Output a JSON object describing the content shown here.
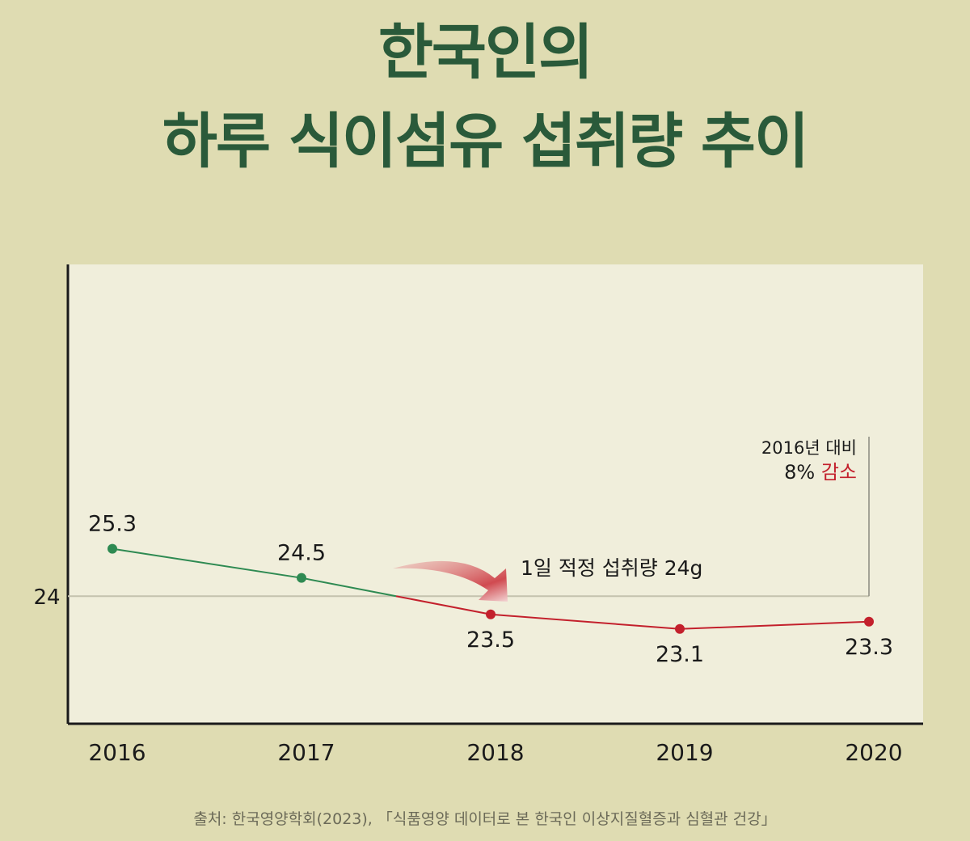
{
  "title_line1": "한국인의",
  "title_line2": "하루 식이섬유 섭취량 추이",
  "chart_data": {
    "type": "line",
    "title": "한국인의 하루 식이섬유 섭취량 추이",
    "categories": [
      "2016",
      "2017",
      "2018",
      "2019",
      "2020"
    ],
    "values": [
      25.3,
      24.5,
      23.5,
      23.1,
      23.3
    ],
    "value_labels": [
      "25.3",
      "24.5",
      "23.5",
      "23.1",
      "23.3"
    ],
    "ylim": [
      20.5,
      33.1
    ],
    "yticks": [
      {
        "value": 24,
        "label": "24"
      }
    ],
    "reference_line": {
      "value": 24,
      "label": "1일 적정 섭취량 24g"
    },
    "annotation": {
      "line1": "2016년 대비",
      "line2_prefix": "8% ",
      "line2_highlight": "감소"
    },
    "colors": {
      "above": "#2e8a52",
      "below": "#c3202c",
      "highlight": "#c3202c",
      "grid": "#c4c2ae"
    },
    "grid": false
  },
  "source": "출처: 한국영양학회(2023), 「식품영양 데이터로 본 한국인 이상지질혈증과 심혈관 건강」"
}
